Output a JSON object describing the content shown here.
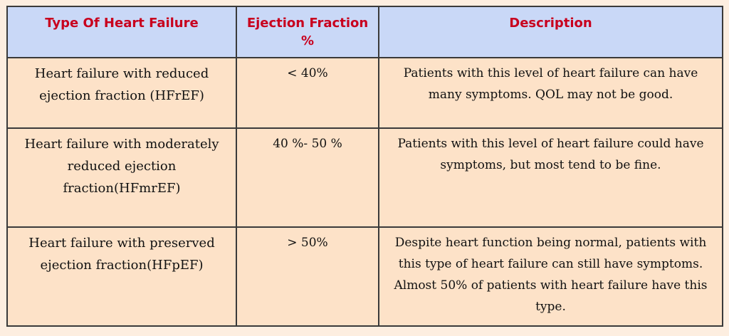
{
  "table": {
    "headers": [
      "Type Of Heart Failure",
      "Ejection Fraction %",
      "Description"
    ],
    "rows": [
      {
        "type": "Heart failure with reduced ejection fraction (HFrEF)",
        "ef": "< 40%",
        "description": "Patients with this level of heart failure can have many symptoms. QOL may not be good."
      },
      {
        "type": "Heart failure with moderately reduced ejection fraction(HFmrEF)",
        "ef": "40 %- 50 %",
        "description": "Patients with this level of heart failure could have symptoms, but most tend to be fine."
      },
      {
        "type": "Heart failure with preserved ejection fraction(HFpEF)",
        "ef": "> 50%",
        "description": "Despite heart function being normal, patients with this type of heart failure can still have symptoms. Almost 50% of patients with heart failure have this type."
      }
    ]
  },
  "colors": {
    "header_bg": "#c9d8f7",
    "header_text": "#c8001e",
    "cell_bg": "#fde2c8",
    "border": "#3a3a3a"
  }
}
